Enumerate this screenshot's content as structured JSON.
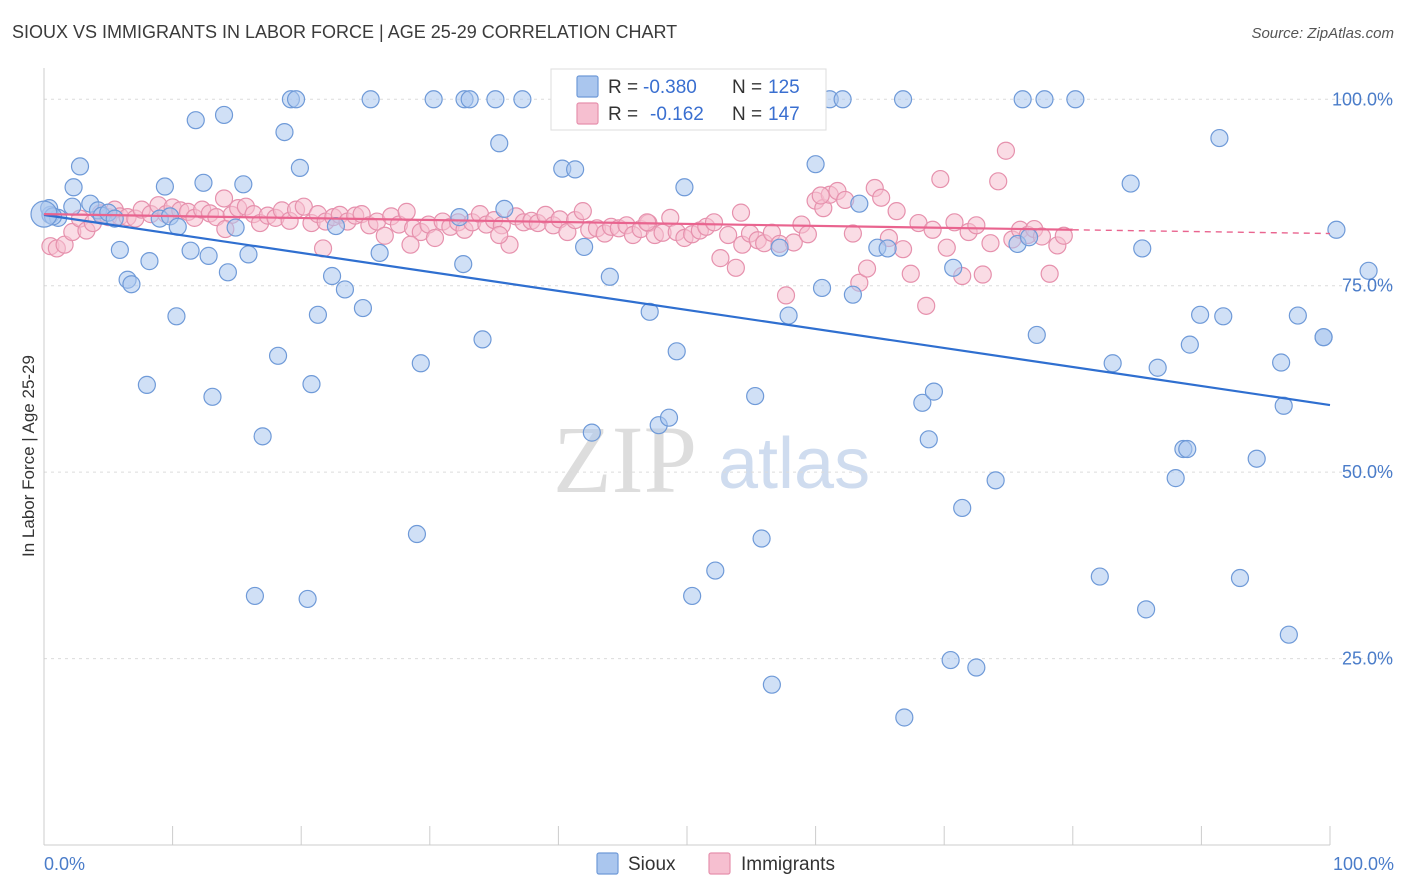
{
  "title": "SIOUX VS IMMIGRANTS IN LABOR FORCE | AGE 25-29 CORRELATION CHART",
  "source": "Source: ZipAtlas.com",
  "watermark": {
    "zip": "ZIP",
    "atlas": "atlas"
  },
  "legend_box": {
    "r_label": "R =",
    "n_label": "N =",
    "sioux_r": "-0.380",
    "sioux_n": "125",
    "immigrants_r": "-0.162",
    "immigrants_n": "147"
  },
  "bottom_legend": {
    "sioux": "Sioux",
    "immigrants": "Immigrants"
  },
  "colors": {
    "sioux_fill": "#aac6ee",
    "sioux_stroke": "#6f9ad8",
    "sioux_line": "#2f6fd0",
    "immigrants_fill": "#f6bfd0",
    "immigrants_stroke": "#e691ad",
    "immigrants_line": "#e9648f",
    "tick_text": "#4a7cc9"
  },
  "chart_data": {
    "type": "scatter",
    "title": "SIOUX VS IMMIGRANTS IN LABOR FORCE | AGE 25-29 CORRELATION CHART",
    "xlabel": "",
    "ylabel": "In Labor Force | Age 25-29",
    "xlim": [
      0,
      100
    ],
    "ylim": [
      0,
      105
    ],
    "x_tick_labels": [
      "0.0%",
      "100.0%"
    ],
    "y_ticks": [
      25,
      50,
      75,
      100
    ],
    "y_tick_labels": [
      "25.0%",
      "50.0%",
      "75.0%",
      "100.0%"
    ],
    "grid": true,
    "legend_position": "top-center",
    "series": [
      {
        "name": "Sioux",
        "r": -0.38,
        "n": 125,
        "trend": {
          "x": [
            0,
            100
          ],
          "y": [
            84.5,
            59.0
          ]
        },
        "points": [
          [
            0.5,
            84.5
          ],
          [
            1.1,
            84.1
          ],
          [
            2.2,
            85.6
          ],
          [
            2.3,
            88.2
          ],
          [
            2.8,
            91
          ],
          [
            3.6,
            86
          ],
          [
            4.2,
            85.1
          ],
          [
            4.5,
            84.4
          ],
          [
            5,
            84.8
          ],
          [
            5.5,
            84
          ],
          [
            5.9,
            79.8
          ],
          [
            6.5,
            75.8
          ],
          [
            6.8,
            75.2
          ],
          [
            8,
            61.7
          ],
          [
            8.2,
            78.3
          ],
          [
            9,
            84
          ],
          [
            9.4,
            88.3
          ],
          [
            9.8,
            84.3
          ],
          [
            10.4,
            82.9
          ],
          [
            10.3,
            70.9
          ],
          [
            11.4,
            79.7
          ],
          [
            11.8,
            97.2
          ],
          [
            12.4,
            88.8
          ],
          [
            12.8,
            79
          ],
          [
            13.1,
            60.1
          ],
          [
            14,
            97.9
          ],
          [
            14.3,
            76.8
          ],
          [
            14.9,
            82.8
          ],
          [
            15.5,
            88.6
          ],
          [
            15.9,
            79.2
          ],
          [
            16.4,
            33.4
          ],
          [
            17,
            54.8
          ],
          [
            18.2,
            65.6
          ],
          [
            18.7,
            95.6
          ],
          [
            19.2,
            100
          ],
          [
            19.6,
            100
          ],
          [
            19.9,
            90.8
          ],
          [
            20.5,
            33
          ],
          [
            20.8,
            61.8
          ],
          [
            21.3,
            71.1
          ],
          [
            22.4,
            76.3
          ],
          [
            22.7,
            83
          ],
          [
            23.4,
            74.5
          ],
          [
            24.8,
            72
          ],
          [
            25.4,
            100
          ],
          [
            26.1,
            79.4
          ],
          [
            29,
            41.7
          ],
          [
            29.3,
            64.6
          ],
          [
            30.3,
            100
          ],
          [
            32.3,
            84.2
          ],
          [
            32.6,
            77.9
          ],
          [
            32.7,
            100
          ],
          [
            33.1,
            100
          ],
          [
            34.1,
            67.8
          ],
          [
            35.1,
            100
          ],
          [
            35.4,
            94.1
          ],
          [
            35.8,
            85.3
          ],
          [
            37.2,
            100
          ],
          [
            40.3,
            90.7
          ],
          [
            41.3,
            90.6
          ],
          [
            42,
            80.2
          ],
          [
            42.6,
            55.3
          ],
          [
            44,
            76.2
          ],
          [
            47.1,
            71.5
          ],
          [
            47.8,
            56.3
          ],
          [
            48.6,
            57.3
          ],
          [
            49.2,
            66.2
          ],
          [
            49.8,
            88.2
          ],
          [
            50.4,
            33.4
          ],
          [
            52.2,
            36.8
          ],
          [
            55.3,
            60.2
          ],
          [
            55.8,
            41.1
          ],
          [
            56.6,
            21.5
          ],
          [
            57.2,
            80.1
          ],
          [
            57.6,
            100
          ],
          [
            57.9,
            71
          ],
          [
            60,
            91.3
          ],
          [
            60.5,
            74.7
          ],
          [
            61.1,
            100
          ],
          [
            62.1,
            100
          ],
          [
            62.9,
            73.8
          ],
          [
            63.4,
            86
          ],
          [
            64.8,
            80.1
          ],
          [
            65.6,
            80
          ],
          [
            66.8,
            100
          ],
          [
            66.9,
            17.1
          ],
          [
            68.3,
            59.3
          ],
          [
            68.8,
            54.4
          ],
          [
            69.2,
            60.8
          ],
          [
            70.5,
            24.8
          ],
          [
            70.7,
            77.4
          ],
          [
            71.4,
            45.2
          ],
          [
            72.5,
            23.8
          ],
          [
            74,
            48.9
          ],
          [
            75.7,
            80.6
          ],
          [
            76.1,
            100
          ],
          [
            76.6,
            81.5
          ],
          [
            77.2,
            68.4
          ],
          [
            77.8,
            100
          ],
          [
            80.2,
            100
          ],
          [
            82.1,
            36
          ],
          [
            83.1,
            64.6
          ],
          [
            84.5,
            88.7
          ],
          [
            85.4,
            80
          ],
          [
            85.7,
            31.6
          ],
          [
            86.6,
            64
          ],
          [
            88,
            49.2
          ],
          [
            88.6,
            53.1
          ],
          [
            88.9,
            53.1
          ],
          [
            89.1,
            67.1
          ],
          [
            89.9,
            71.1
          ],
          [
            91.4,
            94.8
          ],
          [
            91.7,
            70.9
          ],
          [
            93,
            35.8
          ],
          [
            94.3,
            51.8
          ],
          [
            96.2,
            64.7
          ],
          [
            96.4,
            58.9
          ],
          [
            96.8,
            28.2
          ],
          [
            97.5,
            71
          ],
          [
            99.5,
            68.1
          ],
          [
            99.5,
            68.1
          ],
          [
            100.5,
            82.5
          ],
          [
            103,
            77
          ],
          [
            0.4,
            85.4
          ],
          [
            0.7,
            84.3
          ]
        ]
      },
      {
        "name": "Immigrants",
        "r": -0.162,
        "n": 147,
        "trend_solid": {
          "x": [
            0,
            80
          ],
          "y": [
            84.6,
            82.5
          ]
        },
        "trend_dashed": {
          "x": [
            80,
            100
          ],
          "y": [
            82.5,
            82.0
          ]
        },
        "points": [
          [
            0.5,
            80.3
          ],
          [
            1,
            80
          ],
          [
            1.6,
            80.5
          ],
          [
            2.2,
            82.2
          ],
          [
            2.8,
            84
          ],
          [
            3.3,
            82.4
          ],
          [
            3.8,
            83.4
          ],
          [
            4.4,
            84.7
          ],
          [
            5,
            84.2
          ],
          [
            5.5,
            85.2
          ],
          [
            5.9,
            84.3
          ],
          [
            6.5,
            84.2
          ],
          [
            7.1,
            84
          ],
          [
            7.6,
            85.2
          ],
          [
            8.3,
            84.6
          ],
          [
            8.9,
            85.8
          ],
          [
            9.5,
            84.6
          ],
          [
            10,
            85.5
          ],
          [
            10.6,
            85.1
          ],
          [
            11.2,
            84.9
          ],
          [
            11.7,
            84.1
          ],
          [
            12.3,
            85.2
          ],
          [
            12.9,
            84.7
          ],
          [
            13.4,
            84.2
          ],
          [
            14,
            86.7
          ],
          [
            14.6,
            84.5
          ],
          [
            15.1,
            85.4
          ],
          [
            15.7,
            85.6
          ],
          [
            16.3,
            84.6
          ],
          [
            16.8,
            83.4
          ],
          [
            17.4,
            84.4
          ],
          [
            18,
            84.1
          ],
          [
            18.5,
            85.1
          ],
          [
            19.1,
            83.7
          ],
          [
            19.6,
            85.2
          ],
          [
            20.2,
            85.6
          ],
          [
            20.8,
            83.4
          ],
          [
            21.3,
            84.6
          ],
          [
            21.9,
            83.6
          ],
          [
            22.5,
            84.2
          ],
          [
            23,
            84.5
          ],
          [
            23.6,
            83.6
          ],
          [
            24.2,
            84.4
          ],
          [
            24.7,
            84.6
          ],
          [
            25.3,
            83.1
          ],
          [
            25.9,
            83.6
          ],
          [
            26.5,
            81.7
          ],
          [
            27,
            84.3
          ],
          [
            27.6,
            83.2
          ],
          [
            28.2,
            84.9
          ],
          [
            28.7,
            82.7
          ],
          [
            29.3,
            82.2
          ],
          [
            29.9,
            83.2
          ],
          [
            30.4,
            81.4
          ],
          [
            31,
            83.6
          ],
          [
            31.6,
            82.9
          ],
          [
            32.2,
            83.5
          ],
          [
            32.7,
            82.5
          ],
          [
            33.3,
            83.5
          ],
          [
            33.9,
            84.6
          ],
          [
            34.4,
            83.2
          ],
          [
            35,
            83.8
          ],
          [
            35.6,
            83.1
          ],
          [
            36.2,
            80.5
          ],
          [
            36.7,
            84.3
          ],
          [
            37.3,
            83.5
          ],
          [
            37.9,
            83.7
          ],
          [
            38.4,
            83.4
          ],
          [
            39,
            84.5
          ],
          [
            39.6,
            83.1
          ],
          [
            40.1,
            83.9
          ],
          [
            40.7,
            82.2
          ],
          [
            41.3,
            83.8
          ],
          [
            41.9,
            85
          ],
          [
            42.4,
            82.5
          ],
          [
            43,
            82.7
          ],
          [
            43.6,
            82
          ],
          [
            44.1,
            82.9
          ],
          [
            44.7,
            82.7
          ],
          [
            45.3,
            83.1
          ],
          [
            45.8,
            81.8
          ],
          [
            46.4,
            82.6
          ],
          [
            47,
            83.4
          ],
          [
            47.5,
            81.8
          ],
          [
            48.1,
            82.1
          ],
          [
            48.7,
            84.1
          ],
          [
            49.2,
            82.2
          ],
          [
            49.8,
            81.4
          ],
          [
            50.4,
            81.9
          ],
          [
            51,
            82.4
          ],
          [
            51.5,
            82.9
          ],
          [
            52.1,
            83.5
          ],
          [
            52.6,
            78.7
          ],
          [
            53.2,
            81.8
          ],
          [
            53.8,
            77.4
          ],
          [
            54.3,
            80.5
          ],
          [
            54.9,
            82
          ],
          [
            55.5,
            81.1
          ],
          [
            56,
            80.7
          ],
          [
            56.6,
            82.1
          ],
          [
            57.2,
            80.6
          ],
          [
            57.7,
            73.7
          ],
          [
            58.3,
            80.8
          ],
          [
            58.9,
            83.2
          ],
          [
            59.4,
            81.9
          ],
          [
            60,
            86.4
          ],
          [
            60.6,
            85.4
          ],
          [
            61.1,
            87.2
          ],
          [
            61.7,
            87.7
          ],
          [
            62.3,
            86.5
          ],
          [
            62.9,
            82
          ],
          [
            63.4,
            75.4
          ],
          [
            64,
            77.3
          ],
          [
            64.6,
            88.1
          ],
          [
            65.1,
            86.8
          ],
          [
            65.7,
            81.4
          ],
          [
            66.3,
            85
          ],
          [
            66.8,
            79.9
          ],
          [
            67.4,
            76.6
          ],
          [
            68,
            83.4
          ],
          [
            68.6,
            72.3
          ],
          [
            69.1,
            82.5
          ],
          [
            69.7,
            89.3
          ],
          [
            70.2,
            80.1
          ],
          [
            70.8,
            83.5
          ],
          [
            71.4,
            76.3
          ],
          [
            71.9,
            82.2
          ],
          [
            72.5,
            83.1
          ],
          [
            73,
            76.5
          ],
          [
            73.6,
            80.7
          ],
          [
            74.2,
            89
          ],
          [
            74.8,
            93.1
          ],
          [
            75.3,
            81.2
          ],
          [
            75.9,
            82.5
          ],
          [
            76.5,
            81.8
          ],
          [
            77,
            82.6
          ],
          [
            77.6,
            81.6
          ],
          [
            78.2,
            76.6
          ],
          [
            78.8,
            80.4
          ],
          [
            79.3,
            81.7
          ],
          [
            14.1,
            82.6
          ],
          [
            21.7,
            80
          ],
          [
            28.5,
            80.5
          ],
          [
            35.4,
            81.8
          ],
          [
            46.9,
            83.5
          ],
          [
            54.2,
            84.8
          ],
          [
            60.4,
            87.1
          ]
        ]
      }
    ]
  }
}
